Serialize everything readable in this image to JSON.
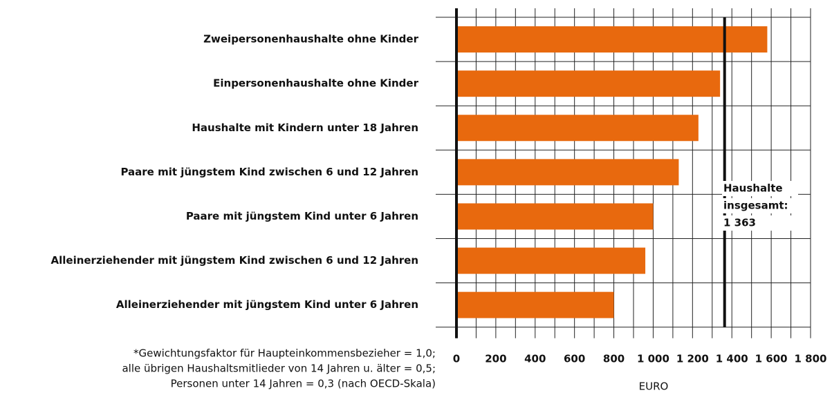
{
  "chart_data": {
    "type": "bar",
    "orientation": "horizontal",
    "categories": [
      "Zweipersonenhaushalte ohne Kinder",
      "Einpersonenhaushalte ohne Kinder",
      "Haushalte mit Kindern unter 18 Jahren",
      "Paare mit jüngstem Kind zwischen 6 und 12 Jahren",
      "Paare mit jüngstem Kind unter 6 Jahren",
      "Alleinerziehender mit jüngstem Kind zwischen 6 und 12 Jahren",
      "Alleinerziehender mit jüngstem Kind unter 6 Jahren"
    ],
    "values": [
      1580,
      1340,
      1230,
      1130,
      1000,
      960,
      800
    ],
    "color": "#e8690e",
    "xlim": [
      0,
      1800
    ],
    "xticks": [
      0,
      200,
      400,
      600,
      800,
      {
        "value": 1000,
        "label": "1 000"
      },
      {
        "value": 1200,
        "label": "1 200"
      },
      {
        "value": 1400,
        "label": "1 400"
      },
      {
        "value": 1600,
        "label": "1 600"
      },
      {
        "value": 1800,
        "label": "1 800"
      }
    ],
    "minor_xticks": [
      100,
      300,
      500,
      700,
      900,
      1100,
      1300,
      1500,
      1700
    ],
    "xlabel": "EURO",
    "grid": true,
    "reference": {
      "value": 1363,
      "label": [
        "Haushalte",
        "insgesamt:",
        "1 363"
      ]
    },
    "footnote": [
      "*Gewichtungsfaktor für Haupteinkommensbezieher = 1,0;",
      "alle übrigen Haushaltsmitlieder von 14 Jahren u. älter = 0,5;",
      "Personen unter 14 Jahren = 0,3 (nach OECD-Skala)"
    ]
  }
}
